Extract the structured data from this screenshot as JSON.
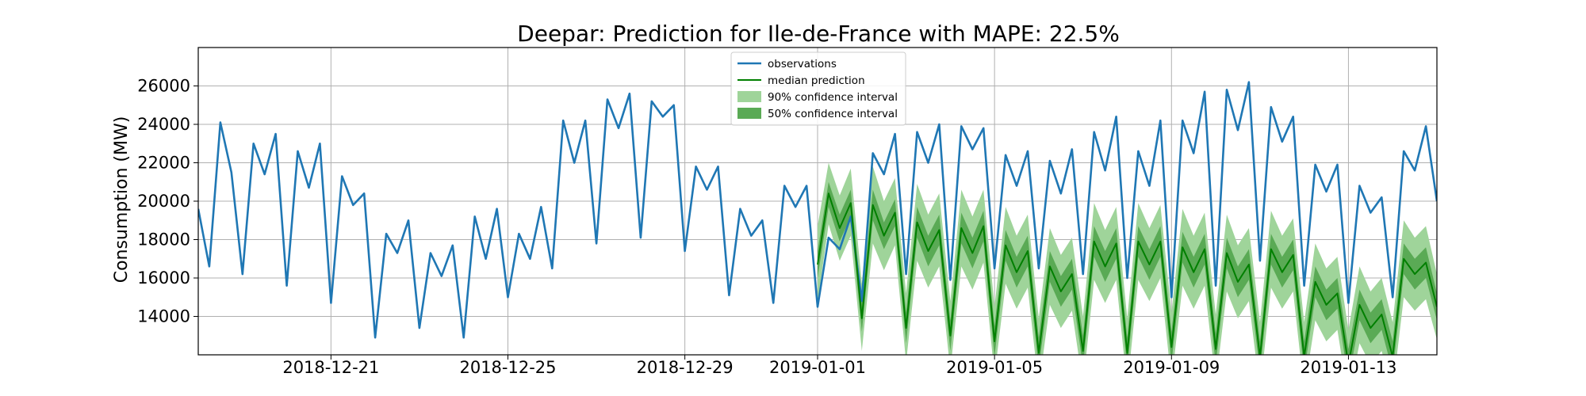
{
  "chart_data": {
    "type": "line",
    "title": "Deepar: Prediction for Ile-de-France with MAPE: 22.5%",
    "xlabel": "",
    "ylabel": "Consumption (MW)",
    "xlim": [
      "2018-12-18",
      "2019-01-15"
    ],
    "ylim": [
      12000,
      28000
    ],
    "grid": true,
    "legend_position": "top-center",
    "x_ticks": [
      "2018-12-21",
      "2018-12-25",
      "2018-12-29",
      "2019-01-01",
      "2019-01-05",
      "2019-01-09",
      "2019-01-13"
    ],
    "y_ticks": [
      14000,
      16000,
      18000,
      20000,
      22000,
      24000,
      26000
    ],
    "legend": [
      "observations",
      "median prediction",
      "90% confidence interval",
      "50% confidence interval"
    ],
    "colors": {
      "observations": "#1f77b4",
      "median": "#007f00",
      "ci90": "#9fd49a",
      "ci50": "#5aaa55"
    },
    "series": [
      {
        "name": "observations",
        "x": [
          "2018-12-18 00:00",
          "2018-12-18 06:00",
          "2018-12-18 12:00",
          "2018-12-18 18:00",
          "2018-12-19 00:00",
          "2018-12-19 06:00",
          "2018-12-19 12:00",
          "2018-12-19 18:00",
          "2018-12-20 00:00",
          "2018-12-20 06:00",
          "2018-12-20 12:00",
          "2018-12-20 18:00",
          "2018-12-21 00:00",
          "2018-12-21 06:00",
          "2018-12-21 12:00",
          "2018-12-21 18:00",
          "2018-12-22 00:00",
          "2018-12-22 06:00",
          "2018-12-22 12:00",
          "2018-12-22 18:00",
          "2018-12-23 00:00",
          "2018-12-23 06:00",
          "2018-12-23 12:00",
          "2018-12-23 18:00",
          "2018-12-24 00:00",
          "2018-12-24 06:00",
          "2018-12-24 12:00",
          "2018-12-24 18:00",
          "2018-12-25 00:00",
          "2018-12-25 06:00",
          "2018-12-25 12:00",
          "2018-12-25 18:00",
          "2018-12-26 00:00",
          "2018-12-26 06:00",
          "2018-12-26 12:00",
          "2018-12-26 18:00",
          "2018-12-27 00:00",
          "2018-12-27 06:00",
          "2018-12-27 12:00",
          "2018-12-27 18:00",
          "2018-12-28 00:00",
          "2018-12-28 06:00",
          "2018-12-28 12:00",
          "2018-12-28 18:00",
          "2018-12-29 00:00",
          "2018-12-29 06:00",
          "2018-12-29 12:00",
          "2018-12-29 18:00",
          "2018-12-30 00:00",
          "2018-12-30 06:00",
          "2018-12-30 12:00",
          "2018-12-30 18:00",
          "2018-12-31 00:00",
          "2018-12-31 06:00",
          "2018-12-31 12:00",
          "2018-12-31 18:00",
          "2019-01-01 00:00",
          "2019-01-01 06:00",
          "2019-01-01 12:00",
          "2019-01-01 18:00",
          "2019-01-02 00:00",
          "2019-01-02 06:00",
          "2019-01-02 12:00",
          "2019-01-02 18:00",
          "2019-01-03 00:00",
          "2019-01-03 06:00",
          "2019-01-03 12:00",
          "2019-01-03 18:00",
          "2019-01-04 00:00",
          "2019-01-04 06:00",
          "2019-01-04 12:00",
          "2019-01-04 18:00",
          "2019-01-05 00:00",
          "2019-01-05 06:00",
          "2019-01-05 12:00",
          "2019-01-05 18:00",
          "2019-01-06 00:00",
          "2019-01-06 06:00",
          "2019-01-06 12:00",
          "2019-01-06 18:00",
          "2019-01-07 00:00",
          "2019-01-07 06:00",
          "2019-01-07 12:00",
          "2019-01-07 18:00",
          "2019-01-08 00:00",
          "2019-01-08 06:00",
          "2019-01-08 12:00",
          "2019-01-08 18:00",
          "2019-01-09 00:00",
          "2019-01-09 06:00",
          "2019-01-09 12:00",
          "2019-01-09 18:00",
          "2019-01-10 00:00",
          "2019-01-10 06:00",
          "2019-01-10 12:00",
          "2019-01-10 18:00",
          "2019-01-11 00:00",
          "2019-01-11 06:00",
          "2019-01-11 12:00",
          "2019-01-11 18:00",
          "2019-01-12 00:00",
          "2019-01-12 06:00",
          "2019-01-12 12:00",
          "2019-01-12 18:00",
          "2019-01-13 00:00",
          "2019-01-13 06:00",
          "2019-01-13 12:00",
          "2019-01-13 18:00",
          "2019-01-14 00:00",
          "2019-01-14 06:00",
          "2019-01-14 12:00",
          "2019-01-14 18:00",
          "2019-01-15 00:00"
        ],
        "values": [
          19600,
          16600,
          24100,
          21500,
          16200,
          23000,
          21400,
          23500,
          15600,
          22600,
          20700,
          23000,
          14700,
          21300,
          19800,
          20400,
          12900,
          18300,
          17300,
          19000,
          13400,
          17300,
          16100,
          17700,
          12900,
          19200,
          17000,
          19600,
          15000,
          18300,
          17000,
          19700,
          16500,
          24200,
          22000,
          24200,
          17800,
          25300,
          23800,
          25600,
          18100,
          25200,
          24400,
          25000,
          17400,
          21800,
          20600,
          21800,
          15100,
          19600,
          18200,
          19000,
          14700,
          20800,
          19700,
          20800,
          14500,
          18100,
          17500,
          19200,
          14800,
          22500,
          21400,
          23500,
          16200,
          23600,
          22000,
          24000,
          15900,
          23900,
          22700,
          23800,
          16500,
          22400,
          20800,
          22600,
          16500,
          22100,
          20400,
          22700,
          16200,
          23600,
          21600,
          24400,
          16000,
          22600,
          20800,
          24200,
          15000,
          24200,
          22500,
          25700,
          15600,
          25800,
          23700,
          26200,
          16900,
          24900,
          23100,
          24400,
          15600,
          21900,
          20500,
          21900,
          14700,
          20800,
          19400,
          20200,
          15000,
          22600,
          21600,
          23900,
          20000
        ]
      },
      {
        "name": "median prediction",
        "x": [
          "2019-01-01 00:00",
          "2019-01-01 06:00",
          "2019-01-01 12:00",
          "2019-01-01 18:00",
          "2019-01-02 00:00",
          "2019-01-02 06:00",
          "2019-01-02 12:00",
          "2019-01-02 18:00",
          "2019-01-03 00:00",
          "2019-01-03 06:00",
          "2019-01-03 12:00",
          "2019-01-03 18:00",
          "2019-01-04 00:00",
          "2019-01-04 06:00",
          "2019-01-04 12:00",
          "2019-01-04 18:00",
          "2019-01-05 00:00",
          "2019-01-05 06:00",
          "2019-01-05 12:00",
          "2019-01-05 18:00",
          "2019-01-06 00:00",
          "2019-01-06 06:00",
          "2019-01-06 12:00",
          "2019-01-06 18:00",
          "2019-01-07 00:00",
          "2019-01-07 06:00",
          "2019-01-07 12:00",
          "2019-01-07 18:00",
          "2019-01-08 00:00",
          "2019-01-08 06:00",
          "2019-01-08 12:00",
          "2019-01-08 18:00",
          "2019-01-09 00:00",
          "2019-01-09 06:00",
          "2019-01-09 12:00",
          "2019-01-09 18:00",
          "2019-01-10 00:00",
          "2019-01-10 06:00",
          "2019-01-10 12:00",
          "2019-01-10 18:00",
          "2019-01-11 00:00",
          "2019-01-11 06:00",
          "2019-01-11 12:00",
          "2019-01-11 18:00",
          "2019-01-12 00:00",
          "2019-01-12 06:00",
          "2019-01-12 12:00",
          "2019-01-12 18:00",
          "2019-01-13 00:00",
          "2019-01-13 06:00",
          "2019-01-13 12:00",
          "2019-01-13 18:00",
          "2019-01-14 00:00",
          "2019-01-14 06:00",
          "2019-01-14 12:00",
          "2019-01-14 18:00",
          "2019-01-15 00:00"
        ],
        "values": [
          16700,
          20400,
          18600,
          19900,
          13900,
          19800,
          18200,
          19400,
          13400,
          18900,
          17400,
          18500,
          13000,
          18600,
          17300,
          18700,
          12700,
          17700,
          16300,
          17400,
          12100,
          16600,
          15300,
          16200,
          12200,
          17900,
          16600,
          17800,
          12100,
          17900,
          16700,
          17900,
          12400,
          17600,
          16300,
          17500,
          12300,
          17300,
          15800,
          16700,
          11900,
          17500,
          16300,
          17200,
          11900,
          15800,
          14600,
          15200,
          11500,
          14600,
          13400,
          14100,
          11900,
          17000,
          16200,
          16800,
          14500
        ],
        "ci50_low": [
          16000,
          19700,
          17900,
          19200,
          13200,
          19000,
          17500,
          18700,
          12600,
          18100,
          16600,
          17700,
          12200,
          17800,
          16500,
          17900,
          11900,
          16900,
          15500,
          16600,
          11300,
          15800,
          14500,
          15400,
          11400,
          17100,
          15800,
          17000,
          11300,
          17100,
          15900,
          17100,
          11600,
          16800,
          15500,
          16700,
          11500,
          16500,
          15000,
          15900,
          11100,
          16700,
          15500,
          16400,
          11100,
          15000,
          13800,
          14400,
          10700,
          13800,
          12600,
          13300,
          11100,
          16200,
          15400,
          16000,
          13800
        ],
        "ci50_high": [
          17400,
          21000,
          19300,
          20600,
          14700,
          20600,
          18900,
          20100,
          14200,
          19700,
          18200,
          19300,
          13800,
          19400,
          18100,
          19500,
          13500,
          18500,
          17100,
          18200,
          12900,
          17400,
          16100,
          17000,
          13000,
          18700,
          17400,
          18600,
          12900,
          18700,
          17500,
          18700,
          13200,
          18400,
          17100,
          18300,
          13100,
          18100,
          16600,
          17500,
          12700,
          18300,
          17100,
          18000,
          12700,
          16600,
          15400,
          16000,
          12300,
          15400,
          14200,
          14900,
          12700,
          17800,
          17000,
          17600,
          15200
        ],
        "ci90_low": [
          14700,
          18800,
          16900,
          18200,
          12200,
          17800,
          16400,
          17700,
          11600,
          16900,
          15500,
          16600,
          11200,
          16600,
          15400,
          16800,
          10900,
          15700,
          14400,
          15500,
          10300,
          14600,
          13400,
          14300,
          10400,
          15900,
          14700,
          15900,
          10300,
          15900,
          14800,
          16000,
          10600,
          15600,
          14400,
          15600,
          10500,
          15300,
          13900,
          14800,
          10100,
          15500,
          14400,
          15300,
          10100,
          13800,
          12700,
          13300,
          9700,
          12600,
          11500,
          12200,
          10100,
          15000,
          14300,
          14900,
          12800
        ],
        "ci90_high": [
          18700,
          22000,
          20300,
          21700,
          15700,
          21800,
          20000,
          21200,
          15200,
          20900,
          19300,
          20400,
          14800,
          20600,
          19200,
          20600,
          14500,
          19700,
          18200,
          19300,
          13900,
          18600,
          17200,
          18100,
          14000,
          19900,
          18500,
          19700,
          13900,
          19900,
          18600,
          19800,
          14200,
          19600,
          18200,
          19400,
          14100,
          19300,
          17700,
          18600,
          13700,
          19500,
          18200,
          19100,
          13700,
          17800,
          16500,
          17100,
          13300,
          16600,
          15300,
          16000,
          13700,
          19000,
          18100,
          18700,
          16200
        ]
      }
    ]
  }
}
